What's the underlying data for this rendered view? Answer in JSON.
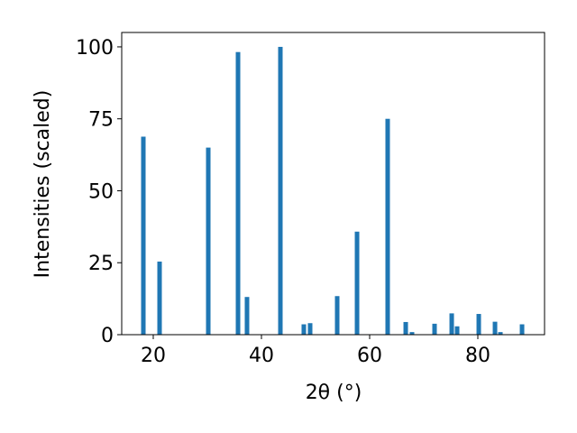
{
  "chart_data": {
    "type": "bar",
    "xlabel": "2θ (°)",
    "ylabel": "Intensities (scaled)",
    "x": [
      18.17,
      21.17,
      30.17,
      35.67,
      37.33,
      43.5,
      47.83,
      49,
      54,
      57.67,
      63.33,
      66.67,
      67.83,
      72,
      75.17,
      76.17,
      80.17,
      83.17,
      84.17,
      88.17
    ],
    "values": [
      68.8,
      25.4,
      65,
      98.2,
      13.1,
      100,
      3.6,
      4,
      13.4,
      35.8,
      75,
      4.4,
      0.9,
      3.8,
      7.4,
      2.9,
      7.2,
      4.5,
      0.9,
      3.6
    ],
    "color": "#1f77b4",
    "xlim": [
      14.17,
      92.33
    ],
    "xticks": [
      20,
      40,
      60,
      80
    ],
    "ylim": [
      0,
      105
    ],
    "yticks": [
      0,
      25,
      50,
      75,
      100
    ],
    "grid": false
  }
}
